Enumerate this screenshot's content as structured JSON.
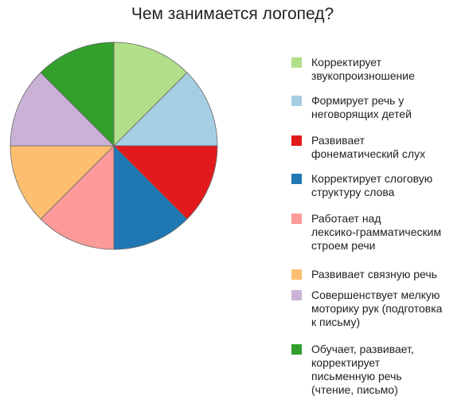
{
  "chart_data": {
    "type": "pie",
    "title": "Чем занимается логопед?",
    "legend_position": "right",
    "slices": [
      {
        "label": "Корректирует звукопроизношение",
        "value": 1,
        "color": "#b2df8a"
      },
      {
        "label": "Формирует речь у неговорящих детей",
        "value": 1,
        "color": "#a6cee3"
      },
      {
        "label": "Развивает фонематический слух",
        "value": 1,
        "color": "#e31a1c"
      },
      {
        "label": "Корректирует слоговую структуру слова",
        "value": 1,
        "color": "#1f78b4"
      },
      {
        "label": "Работает над лексико-грамматическим строем речи",
        "value": 1,
        "color": "#fb9a99"
      },
      {
        "label": "Развивает связную речь",
        "value": 1,
        "color": "#fdbf6f"
      },
      {
        "label": "Совершенствует мелкую моторику рук (подготовка к письму)",
        "value": 1,
        "color": "#cab2d6"
      },
      {
        "label": "Обучает, развивает, корректирует письменную речь (чтение, письмо)",
        "value": 1,
        "color": "#33a02c"
      }
    ]
  },
  "legend": {
    "items": [
      {
        "label": "Корректирует\nзвукопроизношение"
      },
      {
        "label": "Формирует речь у\nнеговорящих детей"
      },
      {
        "label": "Развивает\nфонематический слух"
      },
      {
        "label": "Корректирует слоговую\nструктуру слова"
      },
      {
        "label": "Работает над\nлексико-грамматическим\nстроем речи"
      },
      {
        "label": "Развивает связную речь"
      },
      {
        "label": "Совершенствует мелкую\nмоторику рук (подготовка\nк письму)"
      },
      {
        "label": "Обучает, развивает,\nкорректирует\nписьменную речь\n(чтение, письмо)"
      }
    ]
  }
}
